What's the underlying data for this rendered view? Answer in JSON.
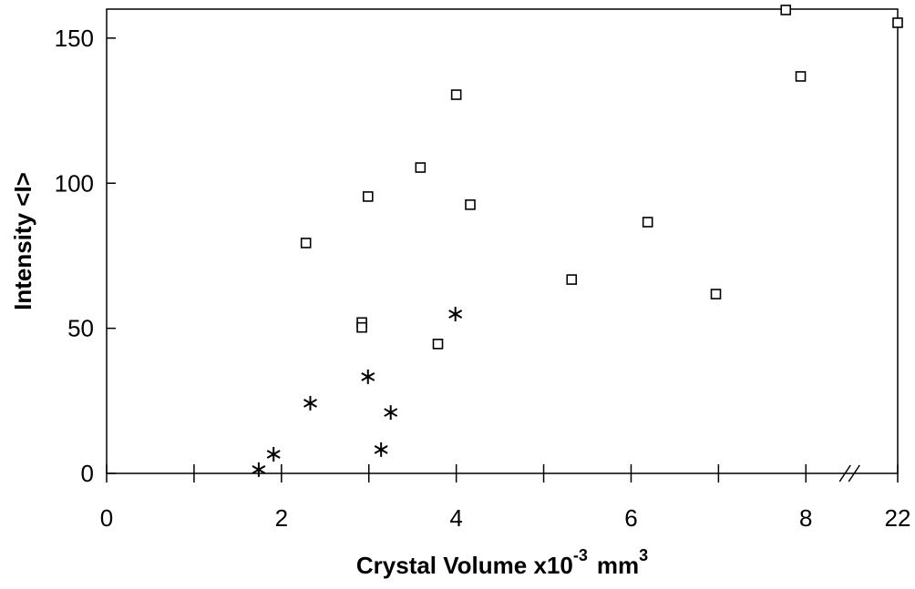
{
  "chart_data": {
    "type": "scatter",
    "xlabel": [
      "Crystal Volume x10",
      "-3",
      "mm",
      "3"
    ],
    "ylabel": "Intensity <I>",
    "xlim": [
      0,
      22
    ],
    "ylim": [
      0,
      160
    ],
    "xticks": [
      0,
      2,
      4,
      6,
      8,
      22
    ],
    "xminor_ticks": [
      1,
      3,
      5,
      7
    ],
    "yticks": [
      0,
      50,
      100,
      150
    ],
    "axis_break": [
      8.5,
      21.45
    ],
    "series": [
      {
        "marker": "square",
        "color": "#000000",
        "x": [
          2.28,
          2.99,
          2.92,
          2.92,
          3.59,
          3.79,
          4.0,
          4.16,
          5.32,
          6.19,
          6.97,
          7.77,
          7.94,
          22
        ],
        "values": [
          79.4,
          95.4,
          52,
          50.3,
          105.4,
          44.6,
          130.5,
          92.6,
          66.8,
          86.6,
          61.8,
          159.7,
          136.8,
          155.3
        ]
      },
      {
        "marker": "star",
        "color": "#000000",
        "x": [
          1.74,
          1.91,
          2.33,
          2.99,
          3.14,
          3.25,
          3.99
        ],
        "values": [
          1.3,
          6.6,
          24.2,
          33.3,
          8.2,
          21.0,
          54.9
        ]
      }
    ]
  }
}
